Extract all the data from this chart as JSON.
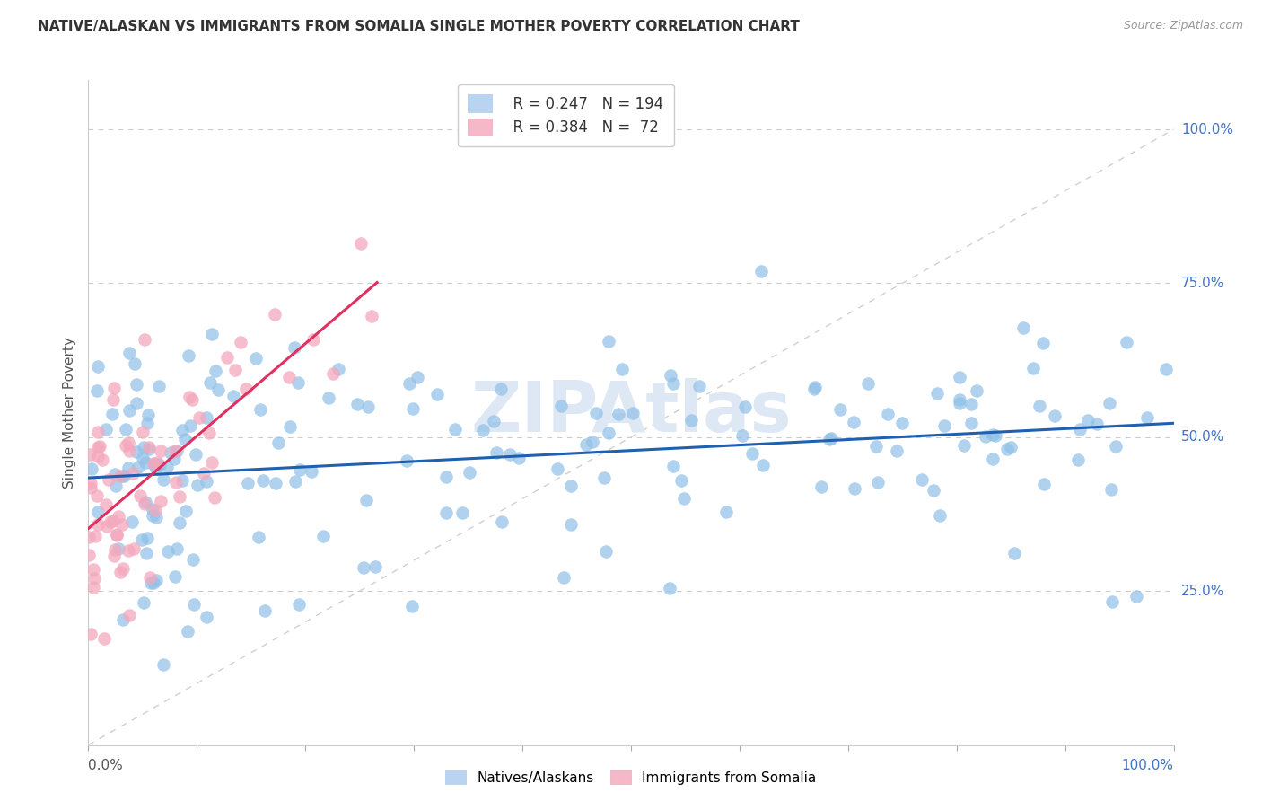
{
  "title": "NATIVE/ALASKAN VS IMMIGRANTS FROM SOMALIA SINGLE MOTHER POVERTY CORRELATION CHART",
  "source": "Source: ZipAtlas.com",
  "ylabel": "Single Mother Poverty",
  "ytick_labels": [
    "25.0%",
    "50.0%",
    "75.0%",
    "100.0%"
  ],
  "ytick_values": [
    0.25,
    0.5,
    0.75,
    1.0
  ],
  "R_blue": 0.247,
  "N_blue": 194,
  "R_pink": 0.384,
  "N_pink": 72,
  "blue_scatter_color": "#90c0e8",
  "pink_scatter_color": "#f4a8bc",
  "blue_line_color": "#2060b0",
  "pink_line_color": "#e03060",
  "diagonal_color": "#d0d0d0",
  "watermark": "ZIPAtlas",
  "watermark_color": "#dde8f4",
  "background_color": "#ffffff",
  "legend_blue_fill": "#b8d4f0",
  "legend_pink_fill": "#f4b8c8"
}
